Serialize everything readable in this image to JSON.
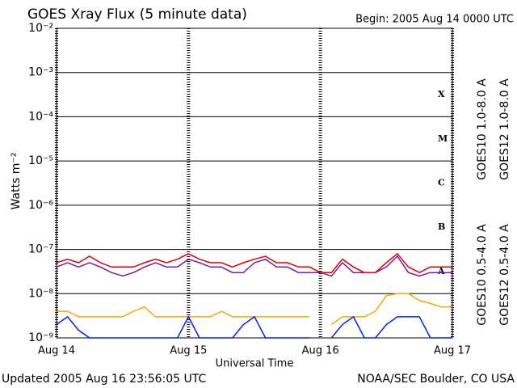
{
  "chart_data": {
    "type": "line",
    "title": "GOES Xray Flux (5 minute data)",
    "subtitle": "Begin:  2005 Aug 14 0000 UTC",
    "ylabel": "Watts m⁻²",
    "xlabel": "Universal Time",
    "footer_left": "Updated 2005 Aug 16 23:56:05 UTC",
    "footer_right": "NOAA/SEC Boulder, CO USA",
    "flare_classes": [
      "X",
      "M",
      "C",
      "B",
      "A"
    ],
    "log_y": true,
    "grid": true,
    "xlim": [
      0,
      72
    ],
    "xticks": [
      {
        "value": 0,
        "label": "Aug 14"
      },
      {
        "value": 24,
        "label": "Aug 15"
      },
      {
        "value": 48,
        "label": "Aug 16"
      },
      {
        "value": 72,
        "label": "Aug 17"
      }
    ],
    "ylim": [
      1e-09,
      0.01
    ],
    "yticks": [
      {
        "value": 0.01,
        "label": "10⁻²"
      },
      {
        "value": 0.001,
        "label": "10⁻³"
      },
      {
        "value": 0.0001,
        "label": "10⁻⁴"
      },
      {
        "value": 1e-05,
        "label": "10⁻⁵"
      },
      {
        "value": 1e-06,
        "label": "10⁻⁶"
      },
      {
        "value": 1e-07,
        "label": "10⁻⁷"
      },
      {
        "value": 1e-08,
        "label": "10⁻⁸"
      },
      {
        "value": 1e-09,
        "label": "10⁻⁹"
      }
    ],
    "x": [
      0,
      2,
      4,
      6,
      8,
      10,
      12,
      14,
      16,
      18,
      20,
      22,
      24,
      26,
      28,
      30,
      32,
      34,
      36,
      38,
      40,
      42,
      44,
      46,
      48,
      50,
      52,
      54,
      56,
      58,
      60,
      62,
      64,
      66,
      68,
      70,
      72
    ],
    "series": [
      {
        "name": "GOES10 1.0-8.0 A",
        "color": "#7020a8",
        "values": [
          4e-08,
          5e-08,
          4e-08,
          5e-08,
          4e-08,
          3e-08,
          2.5e-08,
          3e-08,
          4e-08,
          5e-08,
          4e-08,
          4e-08,
          6e-08,
          5e-08,
          4e-08,
          4e-08,
          3e-08,
          3e-08,
          5e-08,
          6e-08,
          4e-08,
          4e-08,
          3e-08,
          3e-08,
          3e-08,
          2.5e-08,
          5e-08,
          3e-08,
          3e-08,
          3e-08,
          4e-08,
          7e-08,
          3e-08,
          2.5e-08,
          3e-08,
          3e-08,
          3e-08
        ]
      },
      {
        "name": "GOES12 1.0-8.0 A",
        "color": "#e00000",
        "values": [
          5e-08,
          6e-08,
          5e-08,
          7e-08,
          5e-08,
          4e-08,
          4e-08,
          4e-08,
          5e-08,
          6e-08,
          5e-08,
          6e-08,
          8e-08,
          6e-08,
          5e-08,
          5e-08,
          4e-08,
          5e-08,
          6e-08,
          7e-08,
          5e-08,
          5e-08,
          4e-08,
          4e-08,
          3e-08,
          3e-08,
          6e-08,
          4e-08,
          3e-08,
          3e-08,
          5e-08,
          8e-08,
          4e-08,
          3e-08,
          4e-08,
          4e-08,
          4e-08
        ]
      },
      {
        "name": "GOES10 0.5-4.0 A",
        "color": "#ffa500",
        "values": [
          4e-09,
          4e-09,
          3e-09,
          3e-09,
          3e-09,
          3e-09,
          3e-09,
          4e-09,
          5e-09,
          3e-09,
          3e-09,
          3e-09,
          3e-09,
          3e-09,
          3e-09,
          4e-09,
          3e-09,
          3e-09,
          3e-09,
          3e-09,
          3e-09,
          3e-09,
          3e-09,
          3e-09,
          null,
          2e-09,
          3e-09,
          3e-09,
          3e-09,
          4e-09,
          9e-09,
          1e-08,
          1e-08,
          7e-09,
          6e-09,
          5e-09,
          5e-09
        ]
      },
      {
        "name": "GOES12 0.5-4.0 A",
        "color": "#0020ff",
        "values": [
          2e-09,
          3e-09,
          1.5e-09,
          1e-09,
          1e-09,
          1e-09,
          1e-09,
          1e-09,
          1e-09,
          1e-09,
          1e-09,
          1e-09,
          3e-09,
          1e-09,
          1e-09,
          1e-09,
          1e-09,
          2e-09,
          3e-09,
          1e-09,
          1e-09,
          1e-09,
          1e-09,
          1e-09,
          null,
          1e-09,
          2e-09,
          3e-09,
          1e-09,
          1e-09,
          2e-09,
          3e-09,
          3e-09,
          3e-09,
          1e-09,
          1e-09,
          1e-09
        ]
      }
    ]
  }
}
